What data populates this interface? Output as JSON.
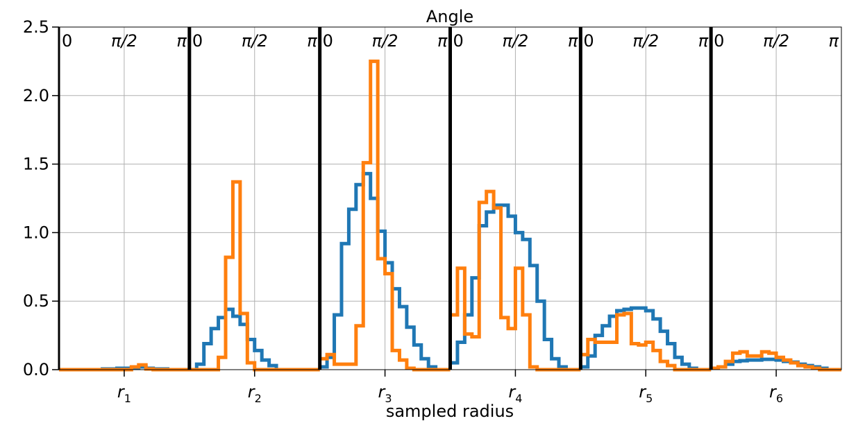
{
  "chart_data": {
    "type": "line",
    "title": "Angle",
    "xlabel": "sampled radius",
    "ylabel": "",
    "ylim": [
      0,
      2.5
    ],
    "yticks": [
      "0.0",
      "0.5",
      "1.0",
      "1.5",
      "2.0",
      "2.5"
    ],
    "y_tick_values": [
      0,
      0.5,
      1.0,
      1.5,
      2.0,
      2.5
    ],
    "grid": true,
    "panels": [
      {
        "name": "r",
        "sub": "1"
      },
      {
        "name": "r",
        "sub": "2"
      },
      {
        "name": "r",
        "sub": "3"
      },
      {
        "name": "r",
        "sub": "4"
      },
      {
        "name": "r",
        "sub": "5"
      },
      {
        "name": "r",
        "sub": "6"
      }
    ],
    "angle_ticks": [
      "0",
      "π/2",
      "π"
    ],
    "bins_per_panel": 18,
    "series": [
      {
        "color": "#1f77b4",
        "values": [
          [
            0,
            0,
            0,
            0,
            0,
            0,
            0.005,
            0.005,
            0.01,
            0.01,
            0.015,
            0.02,
            0.01,
            0.005,
            0.005,
            0,
            0,
            0
          ],
          [
            0,
            0.04,
            0.19,
            0.3,
            0.38,
            0.44,
            0.39,
            0.33,
            0.22,
            0.14,
            0.07,
            0.03,
            0,
            0,
            0,
            0,
            0,
            0
          ],
          [
            0.02,
            0.09,
            0.4,
            0.92,
            1.17,
            1.35,
            1.43,
            1.25,
            1.01,
            0.78,
            0.59,
            0.46,
            0.31,
            0.18,
            0.08,
            0.02,
            0,
            0
          ],
          [
            0.05,
            0.2,
            0.4,
            0.67,
            1.05,
            1.15,
            1.2,
            1.2,
            1.12,
            1.0,
            0.95,
            0.76,
            0.5,
            0.22,
            0.08,
            0.02,
            0,
            0
          ],
          [
            0.02,
            0.1,
            0.25,
            0.32,
            0.39,
            0.43,
            0.44,
            0.45,
            0.45,
            0.43,
            0.37,
            0.28,
            0.19,
            0.09,
            0.04,
            0.01,
            0,
            0
          ],
          [
            0.01,
            0.02,
            0.04,
            0.06,
            0.065,
            0.07,
            0.07,
            0.075,
            0.075,
            0.07,
            0.06,
            0.055,
            0.04,
            0.03,
            0.02,
            0.01,
            0,
            0
          ]
        ]
      },
      {
        "color": "#ff7f0e",
        "values": [
          [
            0,
            0,
            0,
            0,
            0,
            0,
            0,
            0,
            0,
            0,
            0.02,
            0.035,
            0.005,
            0,
            0,
            0,
            0,
            0
          ],
          [
            0,
            0,
            0,
            0,
            0.09,
            0.82,
            1.37,
            0.41,
            0.05,
            0,
            0,
            0,
            0,
            0,
            0,
            0,
            0,
            0
          ],
          [
            0.08,
            0.11,
            0.04,
            0.04,
            0.04,
            0.32,
            1.51,
            2.25,
            0.81,
            0.7,
            0.14,
            0.07,
            0.01,
            0,
            0,
            0,
            0,
            0
          ],
          [
            0.4,
            0.74,
            0.26,
            0.24,
            1.22,
            1.3,
            1.18,
            0.38,
            0.3,
            0.74,
            0.4,
            0.02,
            0,
            0,
            0,
            0,
            0,
            0
          ],
          [
            0.11,
            0.22,
            0.2,
            0.2,
            0.2,
            0.4,
            0.41,
            0.19,
            0.18,
            0.2,
            0.14,
            0.06,
            0.03,
            0,
            0,
            0,
            0,
            0
          ],
          [
            0.01,
            0.02,
            0.06,
            0.12,
            0.13,
            0.1,
            0.1,
            0.13,
            0.12,
            0.09,
            0.07,
            0.05,
            0.03,
            0.02,
            0.01,
            0,
            0,
            0
          ]
        ]
      }
    ]
  }
}
